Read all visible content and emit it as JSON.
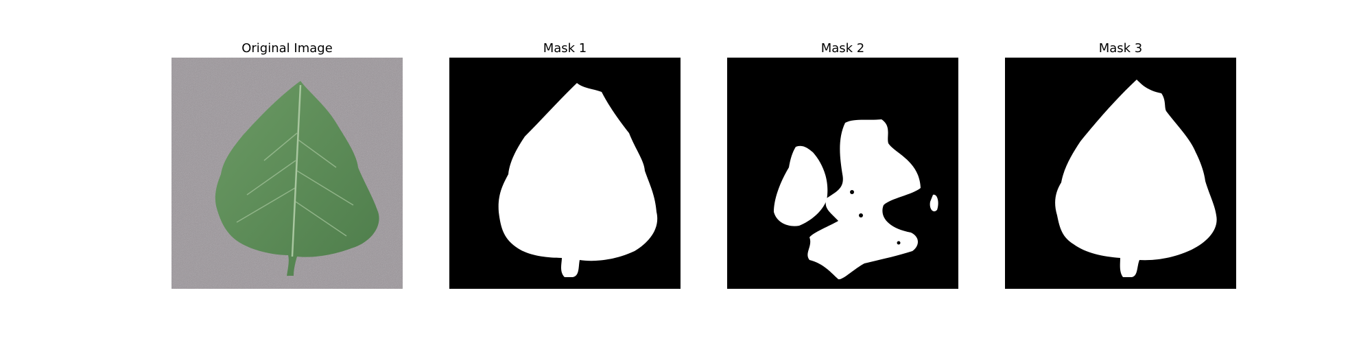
{
  "figure": {
    "panels": [
      {
        "title": "Original Image",
        "content": "photo of a green leaf on a grey textured background"
      },
      {
        "title": "Mask 1",
        "content": "binary mask of the leaf (white leaf on black)"
      },
      {
        "title": "Mask 2",
        "content": "binary mask with partial, fragmented leaf regions"
      },
      {
        "title": "Mask 3",
        "content": "binary mask of the leaf (white leaf on black)"
      }
    ]
  },
  "colors": {
    "background": "#ffffff",
    "leaf": "#5f8f5a",
    "leaf_dark": "#4c7a49",
    "surface": "#9a9499",
    "mask_fg": "#ffffff",
    "mask_bg": "#000000"
  }
}
